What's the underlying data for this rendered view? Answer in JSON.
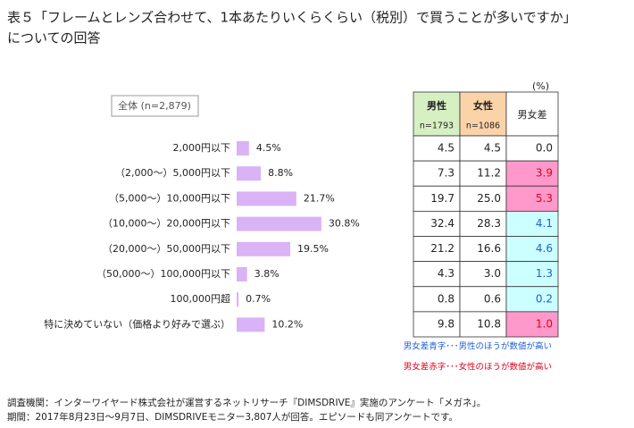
{
  "chart_data": {
    "type": "bar",
    "title_lines": [
      "表５「フレームとレンズ合わせて、1本あたりいくらくらい（税別）で買うことが多いですか」",
      "についての回答"
    ],
    "series_label": "全体 (n=2,879)",
    "categories": [
      "2,000円以下",
      "（2,000～）5,000円以下",
      "（5,000～）10,000円以下",
      "（10,000～）20,000円以下",
      "（20,000～）50,000円以下",
      "（50,000～）100,000円以下",
      "100,000円超",
      "特に決めていない（価格より好みで選ぶ）"
    ],
    "values": [
      4.5,
      8.8,
      21.7,
      30.8,
      19.5,
      3.8,
      0.7,
      10.2
    ],
    "value_labels": [
      "4.5%",
      "8.8%",
      "21.7%",
      "30.8%",
      "19.5%",
      "3.8%",
      "0.7%",
      "10.2%"
    ],
    "color": "#d9b3f5",
    "table": {
      "unit": "(%)",
      "headers": [
        {
          "label": "男性",
          "n": "n=1793",
          "fill": "#d6efc3"
        },
        {
          "label": "女性",
          "n": "n=1086",
          "fill": "#fbd3a9"
        },
        {
          "label": "男女差",
          "fill": "#ffffff"
        }
      ],
      "rows": [
        [
          "4.5",
          "4.5",
          "0.0"
        ],
        [
          "7.3",
          "11.2",
          "3.9"
        ],
        [
          "19.7",
          "25.0",
          "5.3"
        ],
        [
          "32.4",
          "28.3",
          "4.1"
        ],
        [
          "21.2",
          "16.6",
          "4.6"
        ],
        [
          "4.3",
          "3.0",
          "1.3"
        ],
        [
          "0.8",
          "0.6",
          "0.2"
        ],
        [
          "9.8",
          "10.8",
          "1.0"
        ]
      ],
      "diff_fill": [
        "#ffffff",
        "#ff99cc",
        "#ff99cc",
        "#ccffff",
        "#ccffff",
        "#ccffff",
        "#ccffff",
        "#ff99cc"
      ],
      "diff_text_color": [
        "#222222",
        "#e0001b",
        "#e0001b",
        "#1f5fd6",
        "#1f5fd6",
        "#1f5fd6",
        "#1f5fd6",
        "#e0001b"
      ]
    },
    "notes": [
      {
        "text": "男女差青字･･･男性のほうが数値が高い",
        "color": "#1f5fd6"
      },
      {
        "text": "男女差赤字･･･女性のほうが数値が高い",
        "color": "#e0001b"
      }
    ],
    "footer": [
      "調査機関：インターワイヤード株式会社が運営するネットリサーチ『DIMSDRIVE』実施のアンケート「メガネ」。",
      "期間：2017年8月23日～9月7日、DIMSDRIVEモニター3,807人が回答。エピソードも同アンケートです。"
    ]
  }
}
